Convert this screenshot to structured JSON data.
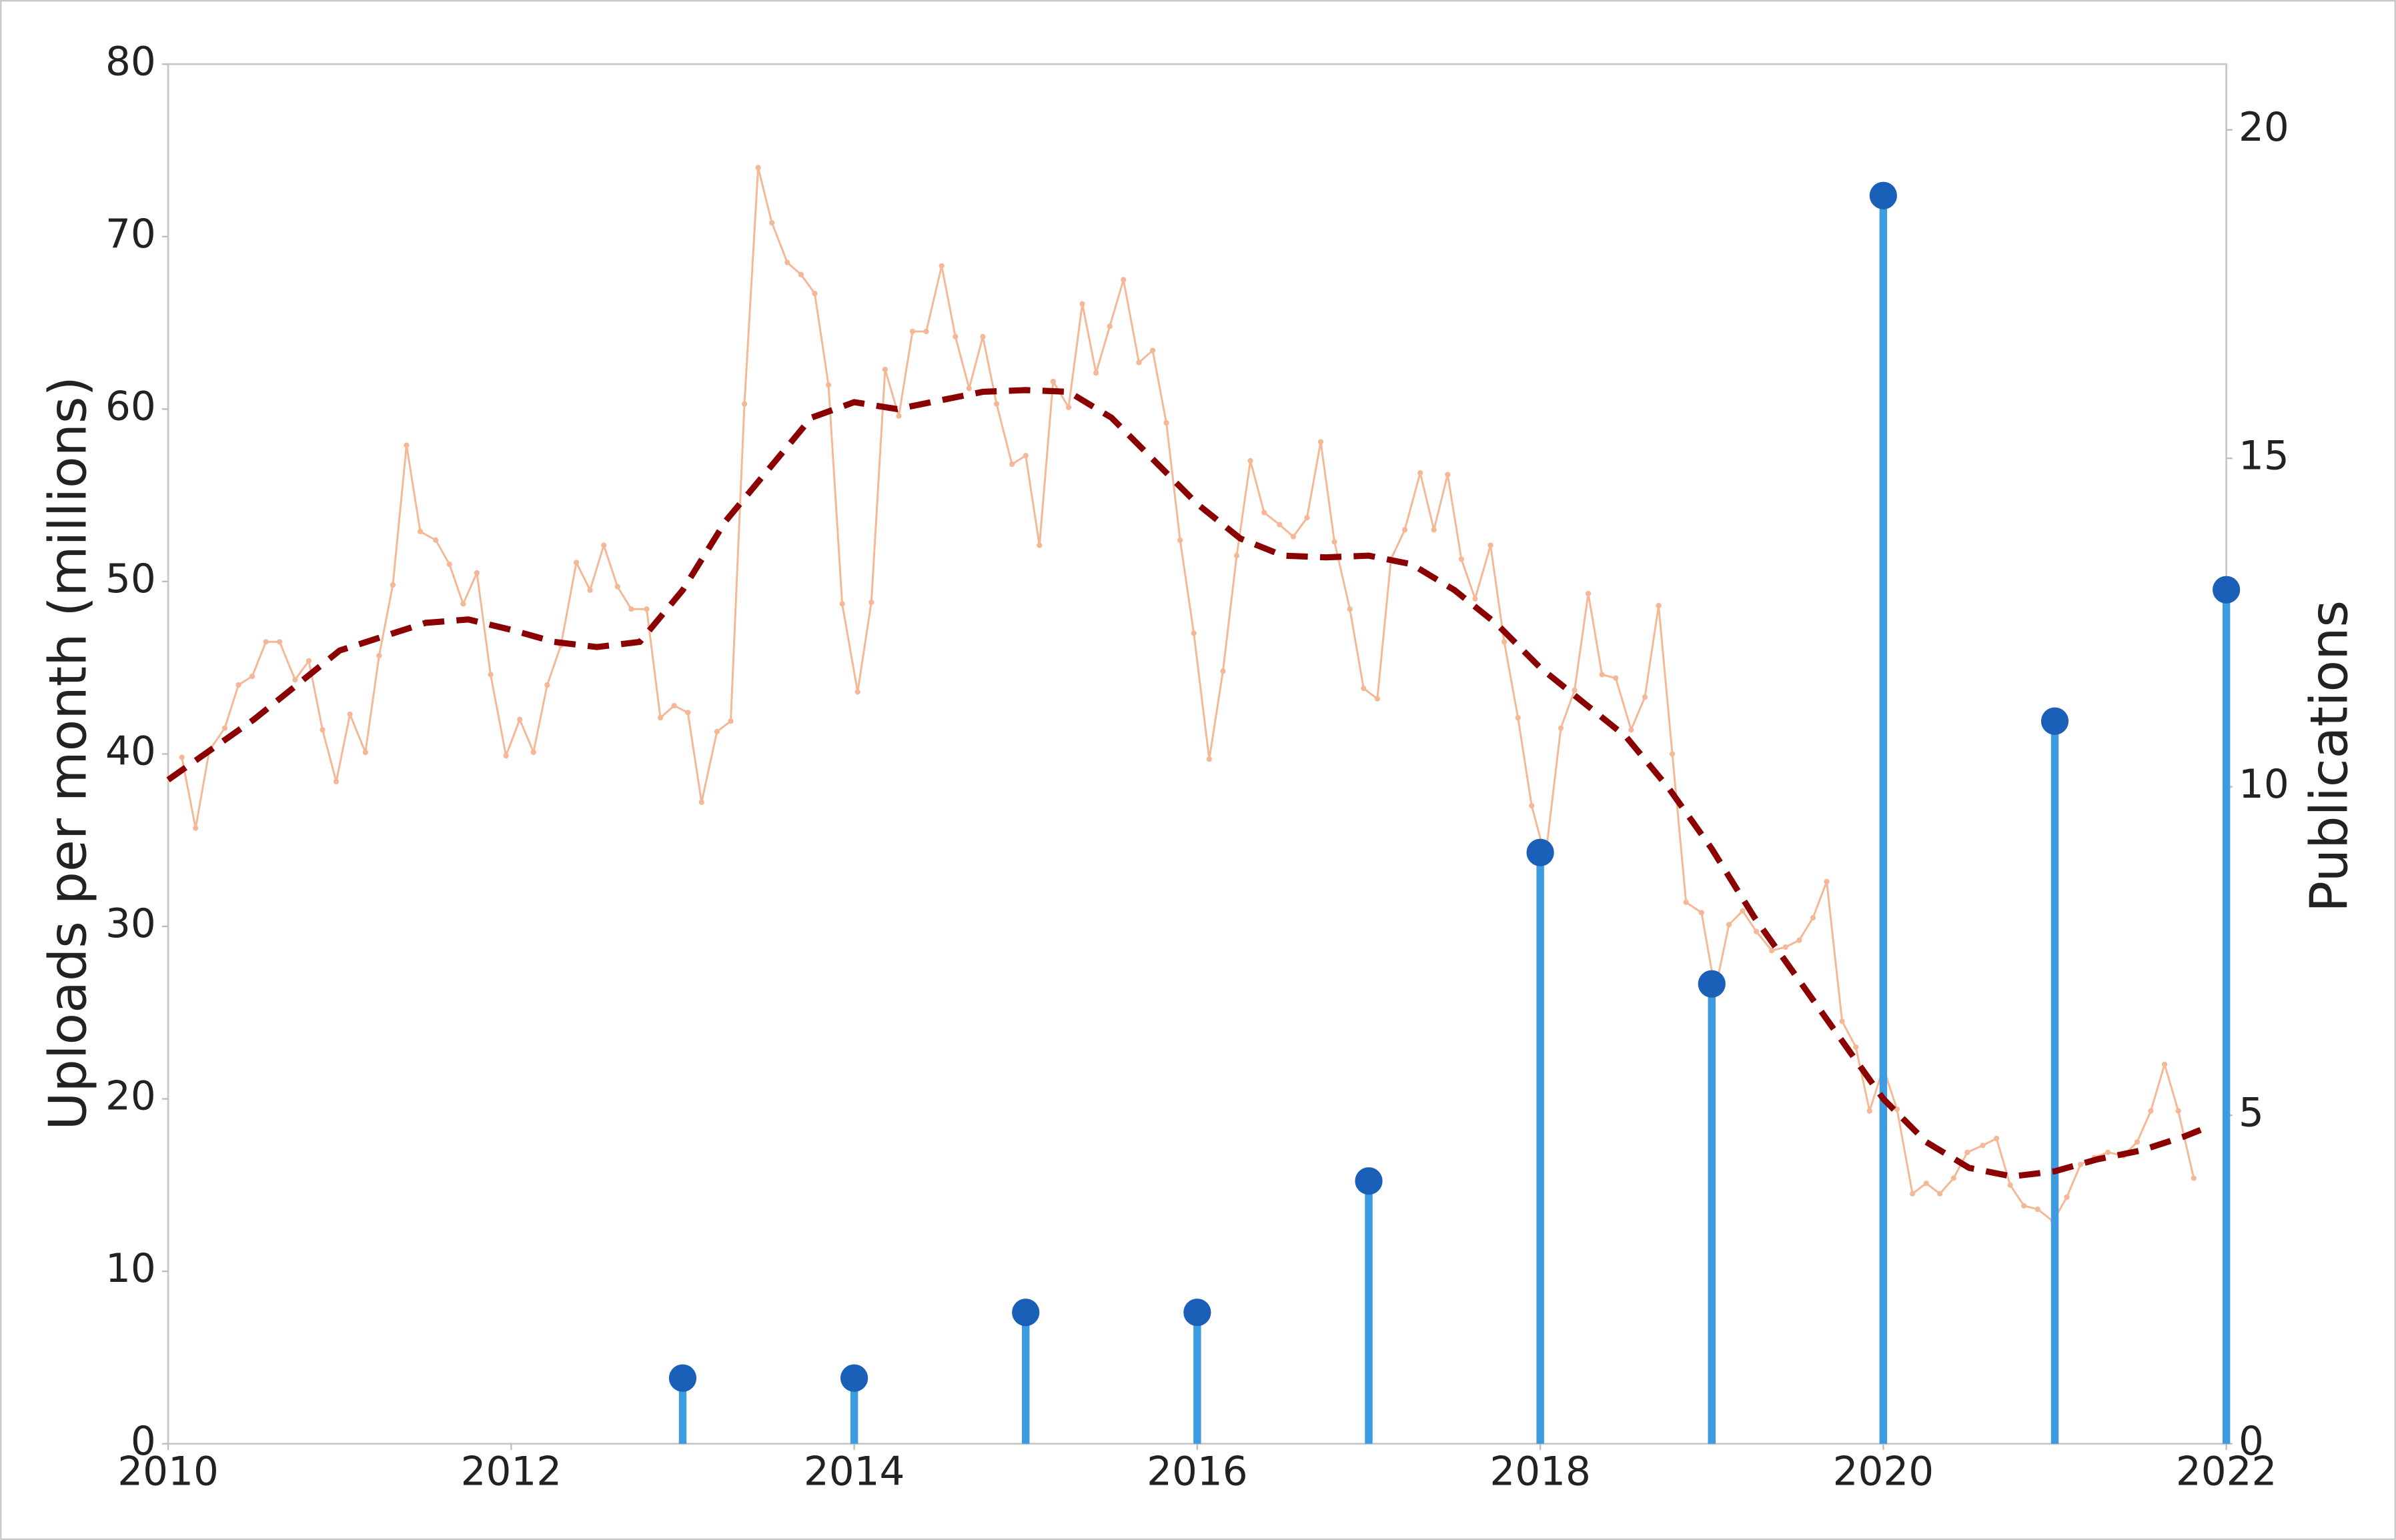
{
  "chart_data": {
    "type": "combo",
    "ylabel": "Uploads per month (millions)",
    "ylabel_color": "#8b0000",
    "y2label": "Publications",
    "y2label_color": "#1f5aa6",
    "xlim": [
      2010,
      2022
    ],
    "xticks": [
      2010,
      2012,
      2014,
      2016,
      2018,
      2020,
      2022
    ],
    "ylim": [
      0,
      80
    ],
    "yticks": [
      0,
      10,
      20,
      30,
      40,
      50,
      60,
      70,
      80
    ],
    "y2lim": [
      0,
      21
    ],
    "y2ticks": [
      0,
      5,
      10,
      15,
      20
    ],
    "grid": false,
    "series": [
      {
        "type": "line",
        "color": "#f5b896",
        "markers": true,
        "x": [
          2010.08,
          2010.16,
          2010.24,
          2010.33,
          2010.41,
          2010.49,
          2010.57,
          2010.65,
          2010.74,
          2010.82,
          2010.9,
          2010.98,
          2011.06,
          2011.15,
          2011.23,
          2011.31,
          2011.39,
          2011.47,
          2011.56,
          2011.64,
          2011.72,
          2011.8,
          2011.88,
          2011.97,
          2012.05,
          2012.13,
          2012.21,
          2012.29,
          2012.38,
          2012.46,
          2012.54,
          2012.62,
          2012.7,
          2012.79,
          2012.87,
          2012.95,
          2013.03,
          2013.11,
          2013.2,
          2013.28,
          2013.36,
          2013.44,
          2013.52,
          2013.61,
          2013.69,
          2013.77,
          2013.85,
          2013.93,
          2014.02,
          2014.1,
          2014.18,
          2014.26,
          2014.34,
          2014.42,
          2014.51,
          2014.59,
          2014.67,
          2014.75,
          2014.83,
          2014.92,
          2015.0,
          2015.08,
          2015.16,
          2015.25,
          2015.33,
          2015.41,
          2015.49,
          2015.57,
          2015.66,
          2015.74,
          2015.82,
          2015.9,
          2015.98,
          2016.07,
          2016.15,
          2016.23,
          2016.31,
          2016.39,
          2016.48,
          2016.56,
          2016.64,
          2016.72,
          2016.8,
          2016.89,
          2016.97,
          2017.05,
          2017.13,
          2017.21,
          2017.3,
          2017.38,
          2017.46,
          2017.54,
          2017.62,
          2017.71,
          2017.79,
          2017.87,
          2017.95,
          2018.03,
          2018.12,
          2018.2,
          2018.28,
          2018.36,
          2018.44,
          2018.53,
          2018.61,
          2018.69,
          2018.77,
          2018.85,
          2018.94,
          2019.02,
          2019.1,
          2019.18,
          2019.26,
          2019.35,
          2019.43,
          2019.51,
          2019.59,
          2019.67,
          2019.76,
          2019.84,
          2019.92,
          2020.0,
          2020.08,
          2020.17,
          2020.25,
          2020.33,
          2020.41,
          2020.49,
          2020.58,
          2020.66,
          2020.74,
          2020.82,
          2020.9,
          2020.99,
          2021.07,
          2021.15,
          2021.23,
          2021.31,
          2021.4,
          2021.48,
          2021.56,
          2021.64,
          2021.72,
          2021.81
        ],
        "values": [
          39.8,
          35.7,
          40.2,
          41.5,
          44,
          44.5,
          46.5,
          46.5,
          44.3,
          45.4,
          41.4,
          38.4,
          42.3,
          40.1,
          45.7,
          49.8,
          57.9,
          52.9,
          52.4,
          51,
          48.7,
          50.5,
          44.6,
          39.9,
          42,
          40.1,
          44,
          46.3,
          51.1,
          49.5,
          52.1,
          49.7,
          48.4,
          48.4,
          42.1,
          42.8,
          42.4,
          37.2,
          41.3,
          41.9,
          60.3,
          74,
          70.8,
          68.5,
          67.8,
          66.7,
          61.4,
          48.7,
          43.6,
          48.8,
          62.3,
          59.6,
          64.5,
          64.5,
          68.3,
          64.2,
          61.2,
          64.2,
          60.3,
          56.8,
          57.3,
          52.1,
          61.6,
          60.1,
          66.1,
          62.1,
          64.8,
          67.5,
          62.7,
          63.4,
          59.2,
          52.4,
          47,
          39.7,
          44.8,
          51.5,
          57,
          54,
          53.3,
          52.6,
          53.7,
          58.1,
          52.3,
          48.4,
          43.8,
          43.2,
          51.3,
          53,
          56.3,
          53,
          56.2,
          51.3,
          49,
          52.1,
          46.5,
          42.1,
          37,
          34,
          41.5,
          43.7,
          49.3,
          44.6,
          44.4,
          41.4,
          43.3,
          48.6,
          40,
          31.4,
          30.8,
          26.3,
          30.1,
          30.9,
          29.7,
          28.6,
          28.8,
          29.2,
          30.5,
          32.6,
          24.5,
          23,
          19.3,
          21.8,
          19.4,
          14.5,
          15.1,
          14.5,
          15.4,
          16.9,
          17.3,
          17.7,
          15,
          13.8,
          13.6,
          12.9,
          14.3,
          16.2,
          16.6,
          16.9,
          16.7,
          17.5,
          19.3,
          22,
          19.3,
          15.4
        ]
      },
      {
        "type": "line",
        "color": "#8b0000",
        "dash": true,
        "x": [
          2010,
          2010.5,
          2011,
          2011.5,
          2011.75,
          2012,
          2012.25,
          2012.5,
          2012.75,
          2013,
          2013.25,
          2013.5,
          2013.75,
          2014,
          2014.25,
          2014.5,
          2014.75,
          2015,
          2015.25,
          2015.5,
          2015.75,
          2016,
          2016.25,
          2016.5,
          2016.75,
          2017,
          2017.25,
          2017.5,
          2017.75,
          2018,
          2018.25,
          2018.5,
          2018.75,
          2019,
          2019.25,
          2019.5,
          2019.75,
          2020,
          2020.25,
          2020.5,
          2020.75,
          2021,
          2021.25,
          2021.5,
          2021.75,
          2021.85
        ],
        "values": [
          38.5,
          42,
          46,
          47.6,
          47.8,
          47.2,
          46.5,
          46.2,
          46.5,
          49.5,
          53.5,
          56.5,
          59.5,
          60.4,
          60,
          60.5,
          61,
          61.1,
          61,
          59.5,
          57,
          54.5,
          52.5,
          51.5,
          51.4,
          51.5,
          51,
          49.5,
          47.5,
          45,
          43,
          41,
          38,
          34.5,
          30.5,
          27,
          23.5,
          20,
          17.5,
          16,
          15.5,
          15.8,
          16.5,
          17,
          17.8,
          18.2
        ]
      },
      {
        "type": "stem",
        "axis": "y2",
        "color": "#3d9be0",
        "marker_color": "#1a5fb8",
        "x": [
          2013,
          2014,
          2015,
          2016,
          2017,
          2018,
          2019,
          2020,
          2021,
          2022
        ],
        "values": [
          1,
          1,
          2,
          2,
          4,
          9,
          7,
          19,
          11,
          13
        ]
      }
    ]
  }
}
